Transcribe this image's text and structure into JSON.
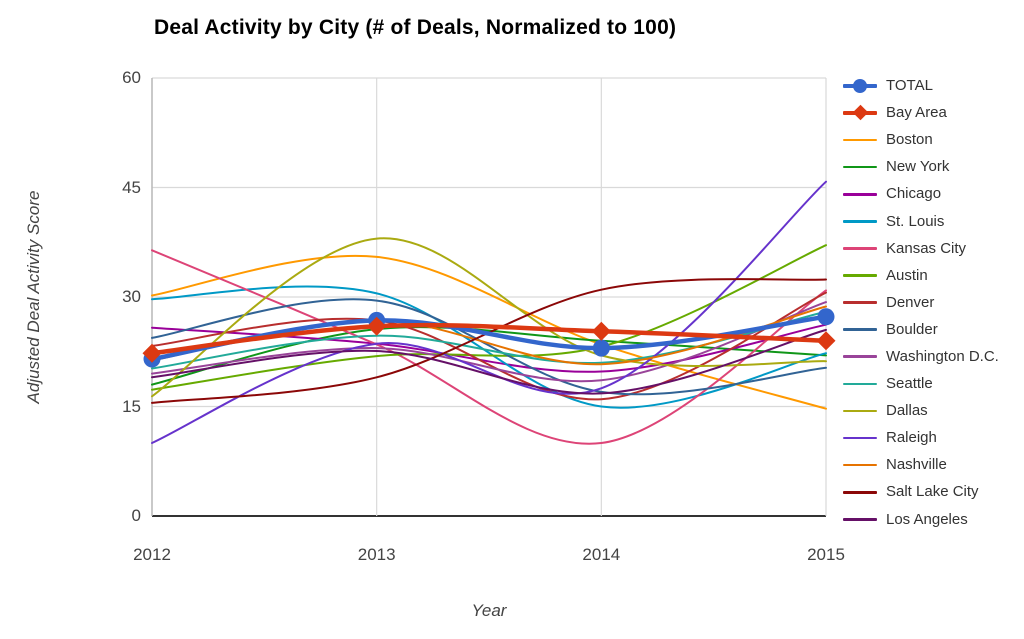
{
  "chart_data": {
    "type": "line",
    "title": "Deal Activity by City (# of Deals, Normalized to 100)",
    "xlabel": "Year",
    "ylabel": "Adjusted Deal Activity Score",
    "x": [
      2012,
      2013,
      2014,
      2015
    ],
    "x_tick_labels": [
      "2012",
      "2013",
      "2014",
      "2015"
    ],
    "y_ticks": [
      0,
      15,
      30,
      45,
      60
    ],
    "ylim": [
      0,
      60
    ],
    "grid": true,
    "curve": "smooth",
    "legend_position": "right",
    "axis_color": "#444444",
    "gridline_color": "#d9d9d9",
    "baseline_color": "#333333",
    "series": [
      {
        "name": "TOTAL",
        "color": "#3366CC",
        "line_width": 4.5,
        "marker": "circle",
        "values": [
          21.5,
          26.8,
          23.0,
          27.3
        ]
      },
      {
        "name": "Bay Area",
        "color": "#DC3912",
        "line_width": 4.5,
        "marker": "diamond",
        "values": [
          22.3,
          26.0,
          25.3,
          24.0
        ]
      },
      {
        "name": "Boston",
        "color": "#FF9900",
        "line_width": 2,
        "marker": "none",
        "values": [
          30.2,
          35.5,
          23.5,
          14.7
        ]
      },
      {
        "name": "New York",
        "color": "#109618",
        "line_width": 2,
        "marker": "none",
        "values": [
          18.0,
          25.6,
          24.0,
          22.0
        ]
      },
      {
        "name": "Chicago",
        "color": "#990099",
        "line_width": 2,
        "marker": "none",
        "values": [
          25.8,
          23.6,
          19.8,
          26.2
        ]
      },
      {
        "name": "St. Louis",
        "color": "#0099C6",
        "line_width": 2,
        "marker": "none",
        "values": [
          29.7,
          30.5,
          15.0,
          22.3
        ]
      },
      {
        "name": "Kansas City",
        "color": "#DD4477",
        "line_width": 2,
        "marker": "none",
        "values": [
          36.4,
          23.5,
          10.0,
          30.9
        ]
      },
      {
        "name": "Austin",
        "color": "#66AA00",
        "line_width": 2,
        "marker": "none",
        "values": [
          17.3,
          21.9,
          23.2,
          37.1
        ]
      },
      {
        "name": "Denver",
        "color": "#B82E2E",
        "line_width": 2,
        "marker": "none",
        "values": [
          23.3,
          26.8,
          16.0,
          30.6
        ]
      },
      {
        "name": "Boulder",
        "color": "#316395",
        "line_width": 2,
        "marker": "none",
        "values": [
          24.4,
          29.5,
          17.0,
          20.3
        ]
      },
      {
        "name": "Washington D.C.",
        "color": "#994499",
        "line_width": 2,
        "marker": "none",
        "values": [
          19.5,
          23.0,
          18.6,
          29.3
        ]
      },
      {
        "name": "Seattle",
        "color": "#22AA99",
        "line_width": 2,
        "marker": "none",
        "values": [
          20.2,
          24.7,
          21.0,
          28.0
        ]
      },
      {
        "name": "Dallas",
        "color": "#AAAA11",
        "line_width": 2,
        "marker": "none",
        "values": [
          16.4,
          38.0,
          22.0,
          21.2
        ]
      },
      {
        "name": "Raleigh",
        "color": "#6633CC",
        "line_width": 2,
        "marker": "none",
        "values": [
          10.0,
          23.6,
          17.5,
          45.8
        ]
      },
      {
        "name": "Nashville",
        "color": "#E67300",
        "line_width": 2,
        "marker": "none",
        "values": [
          21.3,
          26.8,
          20.8,
          28.7
        ]
      },
      {
        "name": "Salt Lake City",
        "color": "#8B0707",
        "line_width": 2,
        "marker": "none",
        "values": [
          15.5,
          19.0,
          31.0,
          32.4
        ]
      },
      {
        "name": "Los Angeles",
        "color": "#651067",
        "line_width": 2,
        "marker": "none",
        "values": [
          19.0,
          22.6,
          16.8,
          25.5
        ]
      }
    ]
  }
}
